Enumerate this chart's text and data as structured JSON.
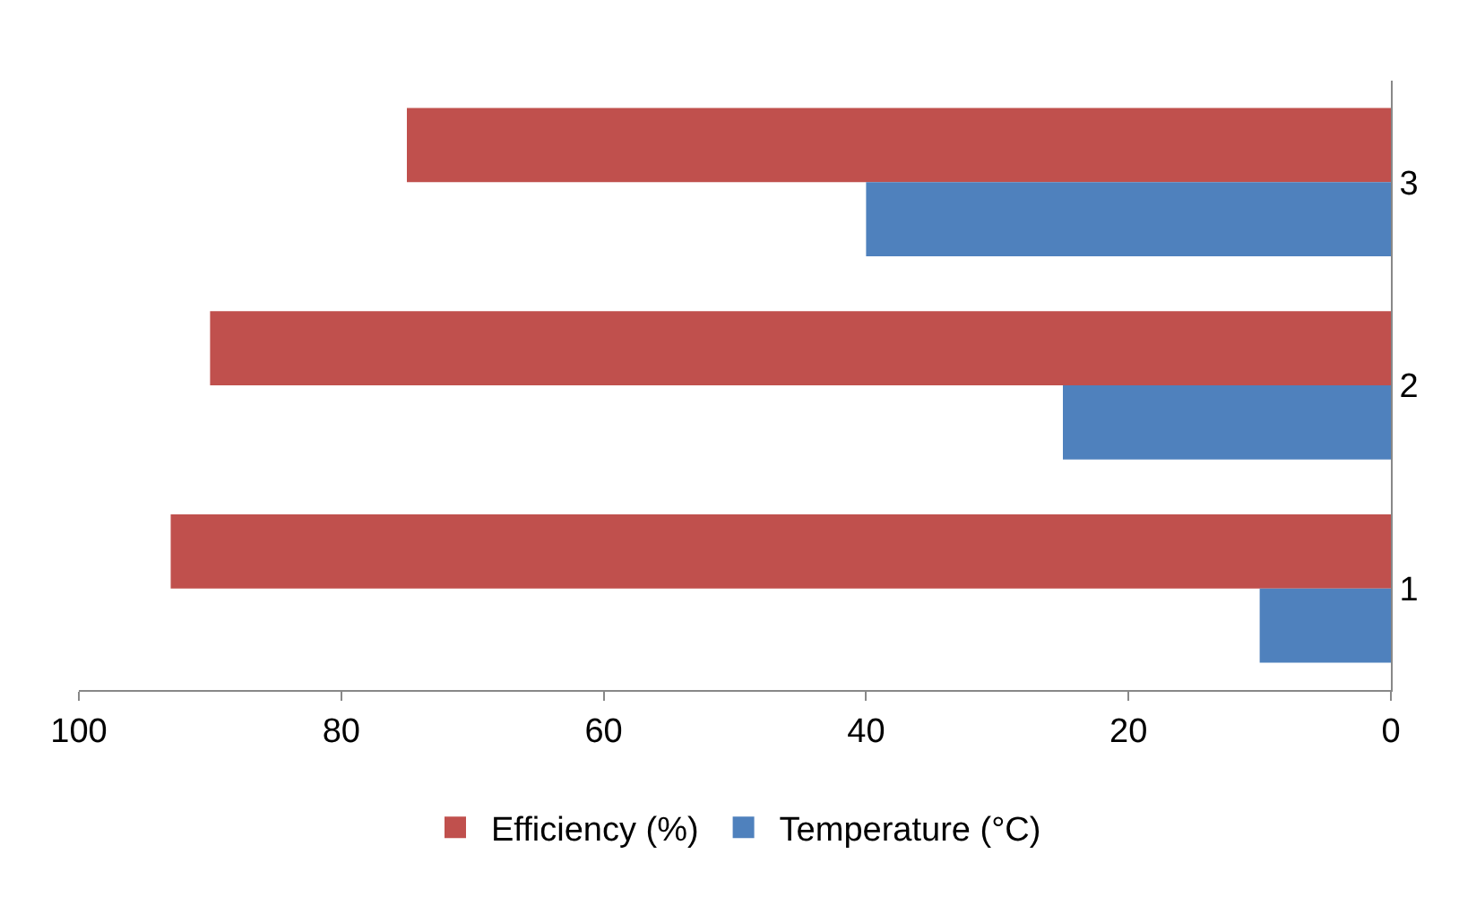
{
  "chart_data": {
    "type": "bar",
    "orientation": "horizontal",
    "categories": [
      "3",
      "2",
      "1"
    ],
    "series": [
      {
        "name": "Efficiency (%)",
        "color": "#c0504d",
        "values": [
          75,
          90,
          93
        ]
      },
      {
        "name": "Temperature (°C)",
        "color": "#4f81bd",
        "values": [
          40,
          25,
          10
        ]
      }
    ],
    "xlim": [
      100,
      0
    ],
    "xticks": [
      100,
      80,
      60,
      40,
      20,
      0
    ],
    "grid": false,
    "legend": "bottom"
  }
}
